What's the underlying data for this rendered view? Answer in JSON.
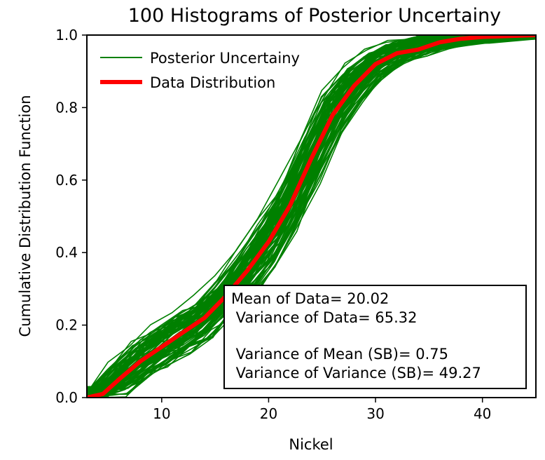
{
  "chart_data": {
    "type": "line",
    "title": "100 Histograms of Posterior Uncertainy",
    "xlabel": "Nickel",
    "ylabel": "Cumulative Distribution Function",
    "xlim": [
      3,
      45
    ],
    "ylim": [
      0,
      1.0
    ],
    "xticks": [
      10,
      20,
      30,
      40
    ],
    "yticks": [
      0.0,
      0.2,
      0.4,
      0.6,
      0.8,
      1.0
    ],
    "xtick_labels": [
      "10",
      "20",
      "30",
      "40"
    ],
    "ytick_labels": [
      "0.0",
      "0.2",
      "0.4",
      "0.6",
      "0.8",
      "1.0"
    ],
    "legend_position": "top-left",
    "grid": false,
    "series": [
      {
        "name": "Posterior Uncertainy",
        "color": "#008000",
        "count": 100,
        "representative": {
          "x": [
            3,
            4.5,
            6,
            8,
            10,
            12,
            14,
            16,
            18,
            20,
            22,
            24,
            26,
            28,
            30,
            32,
            34,
            36,
            38,
            40,
            45
          ],
          "y": [
            0.0,
            0.01,
            0.05,
            0.1,
            0.14,
            0.18,
            0.22,
            0.28,
            0.35,
            0.43,
            0.53,
            0.66,
            0.78,
            0.86,
            0.92,
            0.95,
            0.97,
            0.985,
            0.995,
            1.0,
            1.0
          ]
        },
        "spread": [
          0.02,
          0.03,
          0.04,
          0.05,
          0.05,
          0.05,
          0.05,
          0.05,
          0.06,
          0.06,
          0.06,
          0.06,
          0.06,
          0.05,
          0.04,
          0.03,
          0.025,
          0.02,
          0.02,
          0.02,
          0.01
        ]
      },
      {
        "name": "Data Distribution",
        "color": "#ff0000",
        "x": [
          3,
          4.5,
          6,
          8,
          10,
          12,
          14,
          16,
          18,
          20,
          22,
          24,
          26,
          28,
          30,
          32,
          34,
          36,
          38,
          40,
          45
        ],
        "y": [
          0.0,
          0.01,
          0.05,
          0.1,
          0.14,
          0.18,
          0.22,
          0.28,
          0.35,
          0.43,
          0.53,
          0.66,
          0.78,
          0.86,
          0.92,
          0.95,
          0.96,
          0.98,
          0.99,
          0.995,
          1.0
        ]
      }
    ],
    "stats_box": {
      "lines": [
        "Mean of Data= 20.02",
        " Variance of Data= 65.32",
        "",
        " Variance of Mean (SB)= 0.75",
        " Variance of Variance (SB)= 49.27"
      ]
    }
  }
}
